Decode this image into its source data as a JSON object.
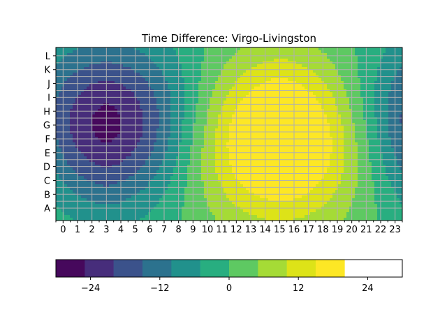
{
  "chart_data": {
    "type": "heatmap",
    "title": "Time Difference: Virgo-Livingston",
    "xlabel": "",
    "ylabel": "",
    "x_ticks": [
      "0",
      "1",
      "2",
      "3",
      "4",
      "5",
      "6",
      "7",
      "8",
      "9",
      "10",
      "11",
      "12",
      "13",
      "14",
      "15",
      "16",
      "17",
      "18",
      "19",
      "20",
      "21",
      "22",
      "23"
    ],
    "y_ticks": [
      "A",
      "B",
      "C",
      "D",
      "E",
      "F",
      "G",
      "H",
      "I",
      "J",
      "K",
      "L"
    ],
    "grid": true,
    "colorbar": {
      "orientation": "horizontal",
      "levels": [
        -30,
        -25,
        -20,
        -15,
        -10,
        -5,
        0,
        5,
        10,
        15,
        20,
        25,
        30
      ],
      "colors": [
        "#46085c",
        "#472d7b",
        "#3b528b",
        "#2c728e",
        "#21918c",
        "#28ae80",
        "#5ec962",
        "#a5db36",
        "#dde318",
        "#fde725"
      ],
      "ticks": [
        -24,
        -12,
        0,
        12,
        24
      ],
      "tick_labels": [
        "−24",
        "−12",
        "0",
        "12",
        "24"
      ]
    },
    "field": {
      "min": -28.5,
      "max": 28.5,
      "minimum_at": {
        "hour": 3,
        "row": "G"
      },
      "maximum_at": {
        "hour": 15,
        "row": "F"
      }
    }
  }
}
